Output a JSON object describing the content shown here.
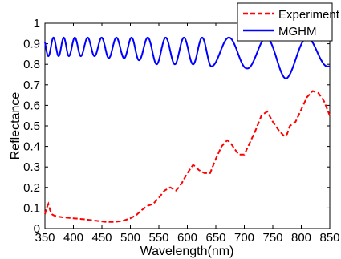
{
  "chart_data": {
    "type": "line",
    "title": "",
    "xlabel": "Wavelength(nm)",
    "ylabel": "Reflectance",
    "xlim": [
      350,
      850
    ],
    "ylim": [
      0,
      1
    ],
    "x_ticks": [
      "350",
      "400",
      "450",
      "500",
      "550",
      "600",
      "650",
      "700",
      "750",
      "800",
      "850"
    ],
    "y_ticks": [
      "0",
      "0.1",
      "0.2",
      "0.3",
      "0.4",
      "0.5",
      "0.6",
      "0.7",
      "0.8",
      "0.9",
      "1"
    ],
    "grid": false,
    "legend_position": "top-right",
    "series": [
      {
        "name": "Experiment",
        "color": "#ff0000",
        "style": "dashed",
        "x": [
          350,
          353,
          356,
          359,
          362,
          365,
          370,
          380,
          400,
          420,
          440,
          455,
          470,
          485,
          500,
          510,
          520,
          530,
          540,
          550,
          560,
          570,
          580,
          585,
          590,
          600,
          610,
          615,
          620,
          630,
          640,
          650,
          660,
          670,
          675,
          680,
          690,
          700,
          710,
          720,
          730,
          740,
          750,
          760,
          770,
          775,
          780,
          790,
          800,
          810,
          820,
          830,
          840,
          850
        ],
        "y": [
          0.07,
          0.1,
          0.12,
          0.09,
          0.07,
          0.065,
          0.06,
          0.055,
          0.05,
          0.045,
          0.038,
          0.033,
          0.032,
          0.036,
          0.05,
          0.065,
          0.09,
          0.11,
          0.12,
          0.15,
          0.185,
          0.2,
          0.185,
          0.2,
          0.22,
          0.27,
          0.31,
          0.3,
          0.285,
          0.27,
          0.27,
          0.34,
          0.4,
          0.43,
          0.42,
          0.4,
          0.36,
          0.36,
          0.42,
          0.48,
          0.55,
          0.57,
          0.52,
          0.48,
          0.45,
          0.46,
          0.5,
          0.52,
          0.58,
          0.64,
          0.67,
          0.66,
          0.62,
          0.55
        ]
      },
      {
        "name": "MGHM",
        "color": "#0000ff",
        "style": "solid",
        "minima": [
          356,
          374,
          392,
          413,
          437,
          462,
          489,
          515,
          546,
          578,
          610,
          642,
          704,
          773,
          848
        ],
        "minima_values": [
          0.84,
          0.84,
          0.84,
          0.84,
          0.84,
          0.83,
          0.83,
          0.82,
          0.8,
          0.8,
          0.8,
          0.79,
          0.78,
          0.73,
          0.79
        ],
        "peak_level": 0.93
      }
    ]
  }
}
